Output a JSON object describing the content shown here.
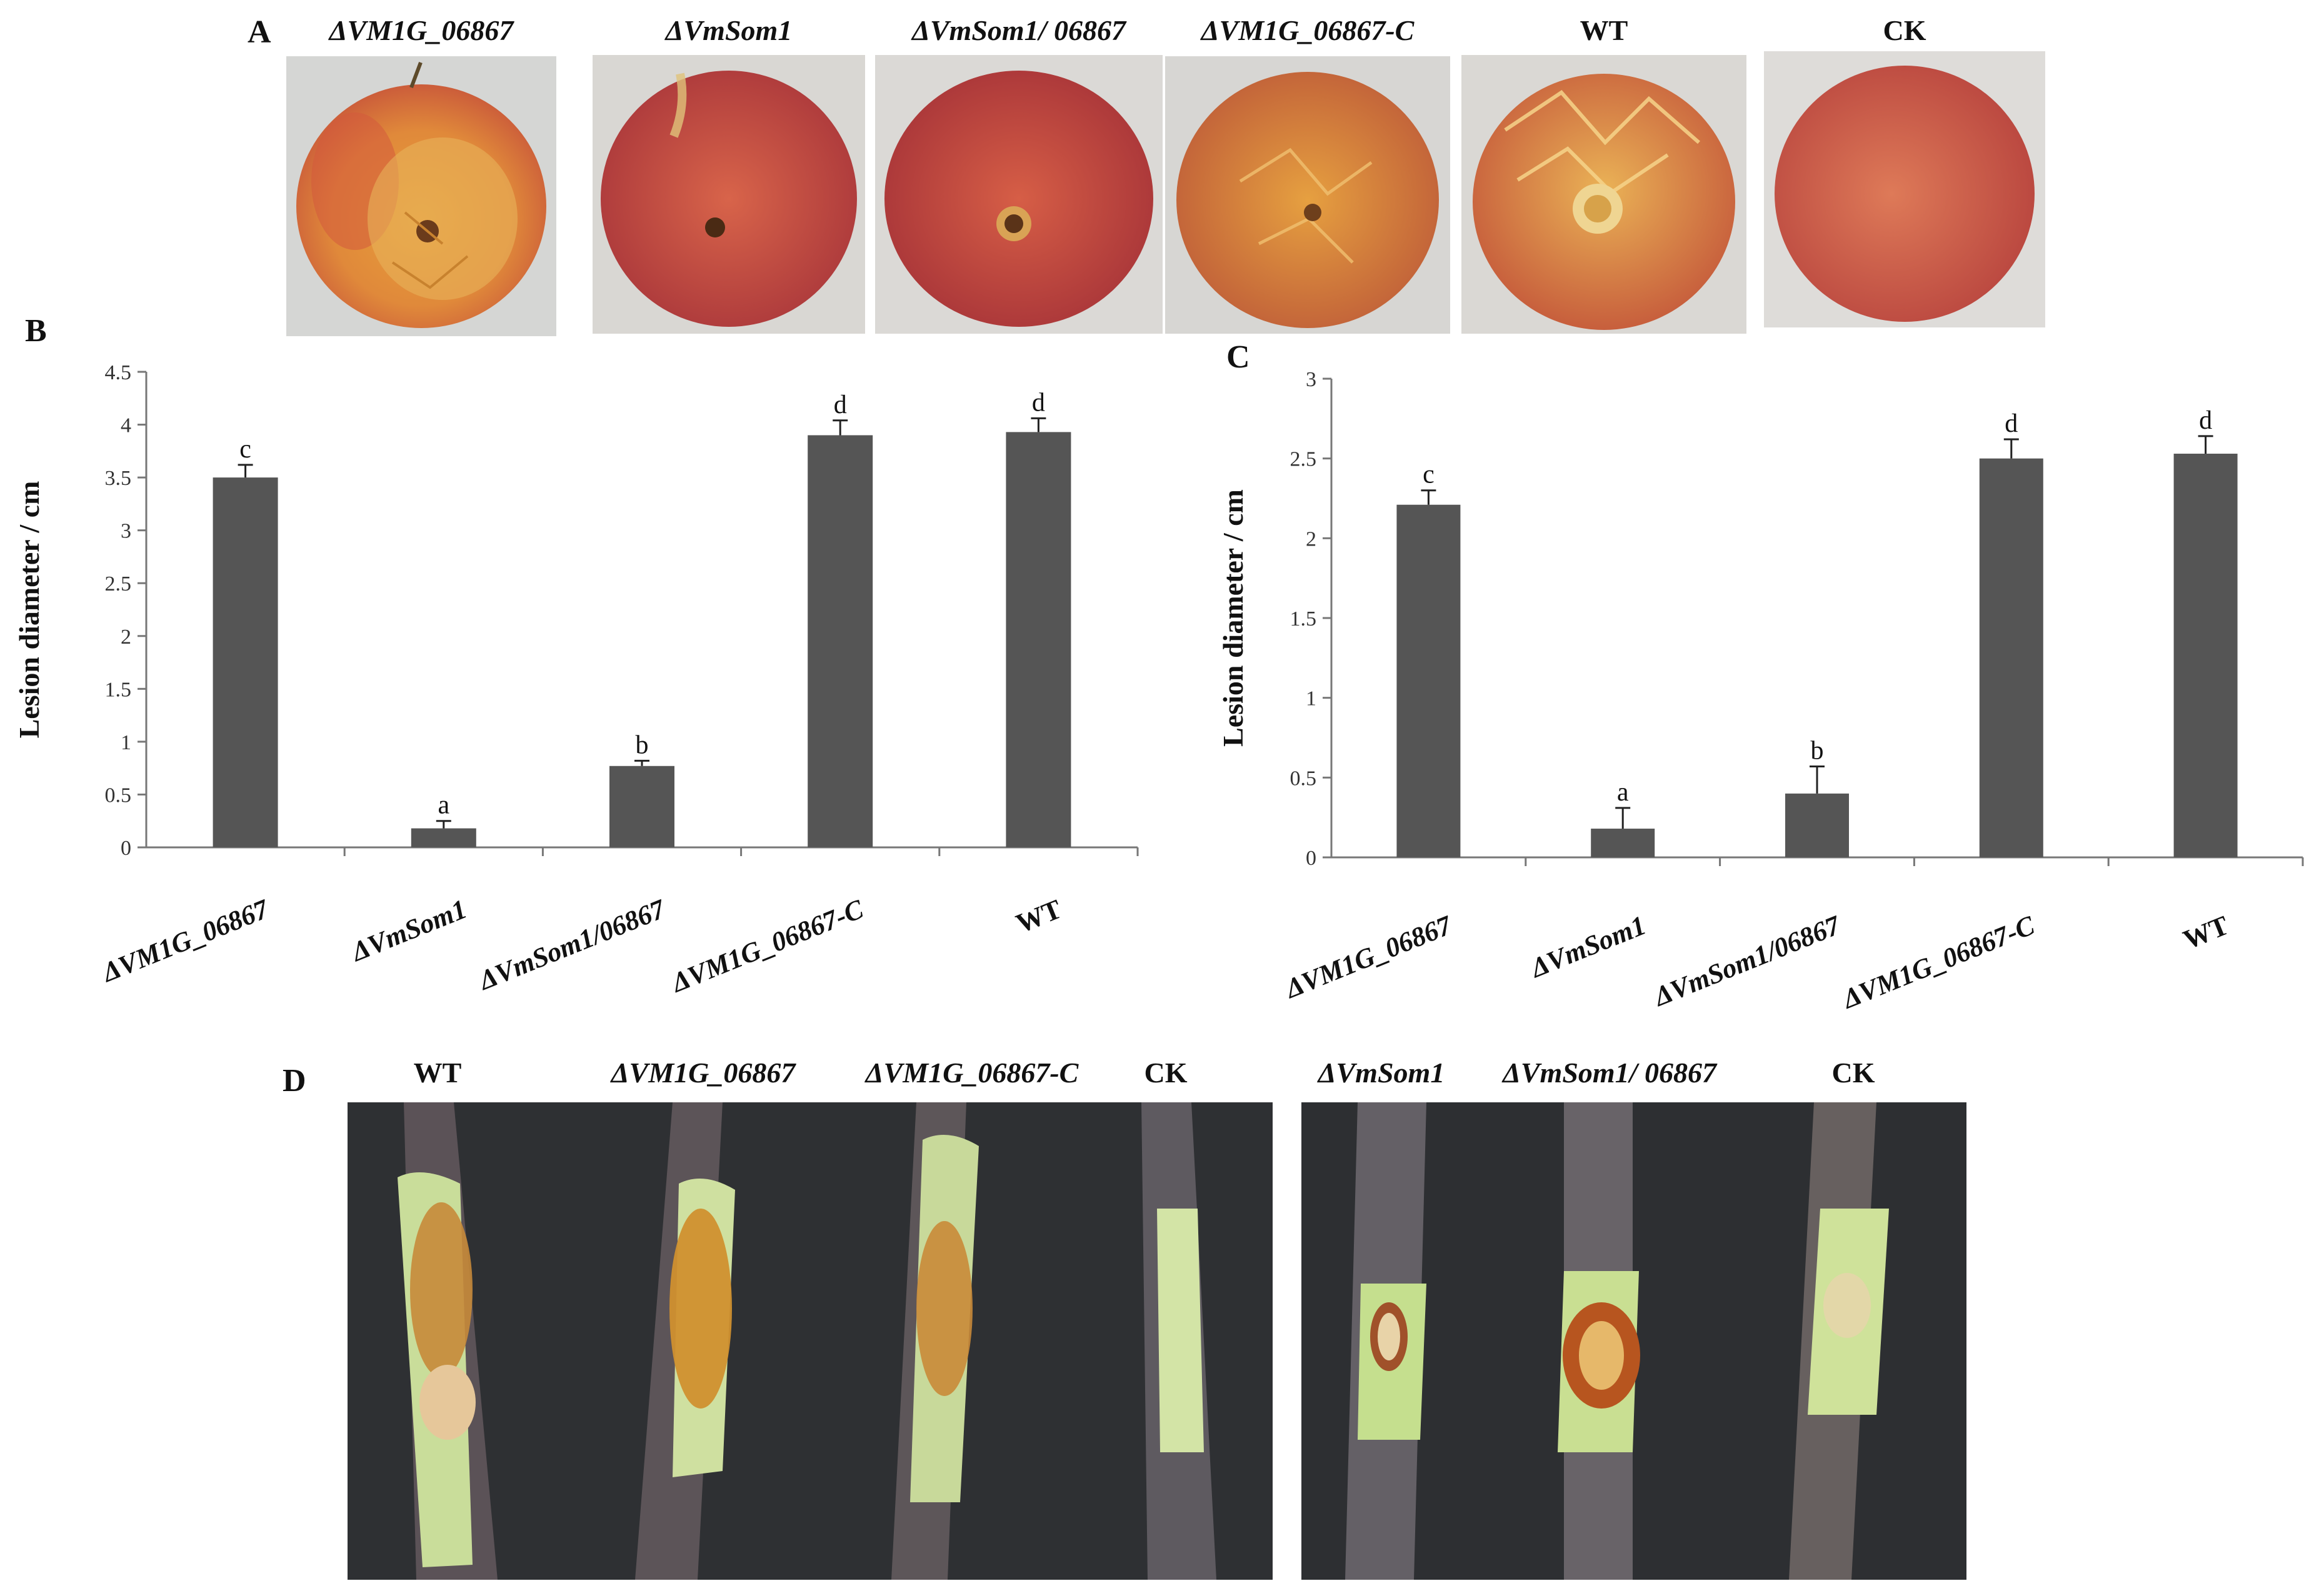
{
  "panels": {
    "a": {
      "letter": "A",
      "labels": [
        "ΔVM1G_06867",
        "ΔVmSom1",
        "ΔVmSom1/ 06867",
        "ΔVM1G_06867-C",
        "WT",
        "CK"
      ]
    },
    "d": {
      "letter": "D",
      "left_labels": [
        "WT",
        "ΔVM1G_06867",
        "ΔVM1G_06867-C",
        "CK"
      ],
      "right_labels": [
        "ΔVmSom1",
        "ΔVmSom1/ 06867",
        "CK"
      ]
    }
  },
  "chart_data": [
    {
      "panel": "B",
      "type": "bar",
      "categories": [
        "ΔVM1G_06867",
        "ΔVmSom1",
        "ΔVmSom1/06867",
        "ΔVM1G_06867-C",
        "WT"
      ],
      "values": [
        3.5,
        0.18,
        0.77,
        3.9,
        3.93
      ],
      "errors": [
        0.12,
        0.07,
        0.05,
        0.14,
        0.13
      ],
      "significance": [
        "c",
        "a",
        "b",
        "d",
        "d"
      ],
      "ylabel": "Lesion diameter / cm",
      "ylim": [
        0,
        4.5
      ],
      "yticks": [
        "0",
        "0.5",
        "1",
        "1.5",
        "2",
        "2.5",
        "3",
        "3.5",
        "4",
        "4.5"
      ],
      "bar_color": "#555555",
      "grid": false
    },
    {
      "panel": "C",
      "type": "bar",
      "categories": [
        "ΔVM1G_06867",
        "ΔVmSom1",
        "ΔVmSom1/06867",
        "ΔVM1G_06867-C",
        "WT"
      ],
      "values": [
        2.21,
        0.18,
        0.4,
        2.5,
        2.53
      ],
      "errors": [
        0.09,
        0.13,
        0.17,
        0.12,
        0.11
      ],
      "significance": [
        "c",
        "a",
        "b",
        "d",
        "d"
      ],
      "ylabel": "Lesion diameter / cm",
      "ylim": [
        0,
        3
      ],
      "yticks": [
        "0",
        "0.5",
        "1",
        "1.5",
        "2",
        "2.5",
        "3"
      ],
      "bar_color": "#555555",
      "grid": false
    }
  ],
  "colors": {
    "apple_red": "#c4473d",
    "apple_lesion": "#d9902f",
    "photo_background": "#d8d7d5",
    "mat_dark": "#2c2e31",
    "twig_bark": "#5f575c",
    "twig_wound": "#c9dc9a",
    "lesion_brown": "#b5651e"
  }
}
